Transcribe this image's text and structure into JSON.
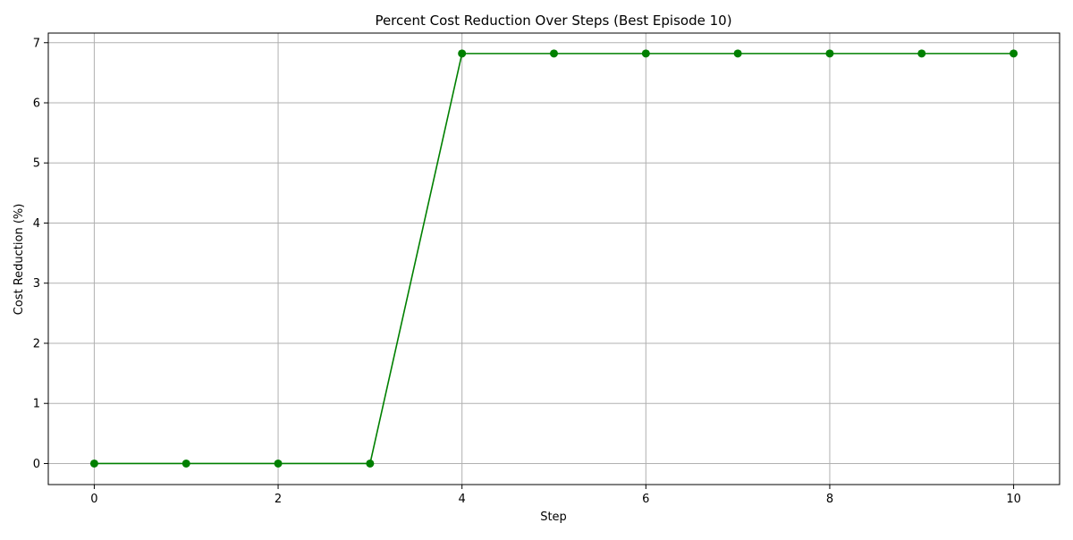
{
  "chart_data": {
    "type": "line",
    "title": "Percent Cost Reduction Over Steps (Best Episode 10)",
    "xlabel": "Step",
    "ylabel": "Cost Reduction (%)",
    "x": [
      0,
      1,
      2,
      3,
      4,
      5,
      6,
      7,
      8,
      9,
      10
    ],
    "series": [
      {
        "values": [
          0,
          0,
          0,
          0,
          6.82,
          6.82,
          6.82,
          6.82,
          6.82,
          6.82,
          6.82
        ],
        "color": "#008000",
        "marker": "circle"
      }
    ],
    "xlim": [
      -0.5,
      10.5
    ],
    "ylim": [
      -0.35,
      7.16
    ],
    "xticks": [
      "0",
      "2",
      "4",
      "6",
      "8",
      "10"
    ],
    "yticks": [
      "0",
      "1",
      "2",
      "3",
      "4",
      "5",
      "6",
      "7"
    ],
    "grid": true,
    "grid_color": "#b0b0b0"
  }
}
